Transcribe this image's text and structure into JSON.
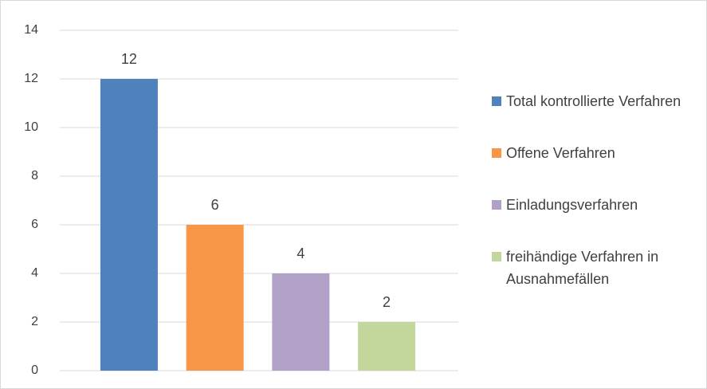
{
  "chart_data": {
    "type": "bar",
    "series": [
      {
        "name": "Total kontrollierte Verfahren",
        "color": "#4f81bd",
        "values": [
          12
        ]
      },
      {
        "name": "Offene Verfahren",
        "color": "#f79646",
        "values": [
          6
        ]
      },
      {
        "name": "Einladungsverfahren",
        "color": "#b2a1c7",
        "values": [
          4
        ]
      },
      {
        "name": "freihändige Verfahren in Ausnahmefällen",
        "color": "#c3d69b",
        "values": [
          2
        ]
      }
    ],
    "ylim": [
      0,
      14
    ],
    "yticks": [
      0,
      2,
      4,
      6,
      8,
      10,
      12,
      14
    ],
    "grid": true,
    "legend": "right"
  }
}
